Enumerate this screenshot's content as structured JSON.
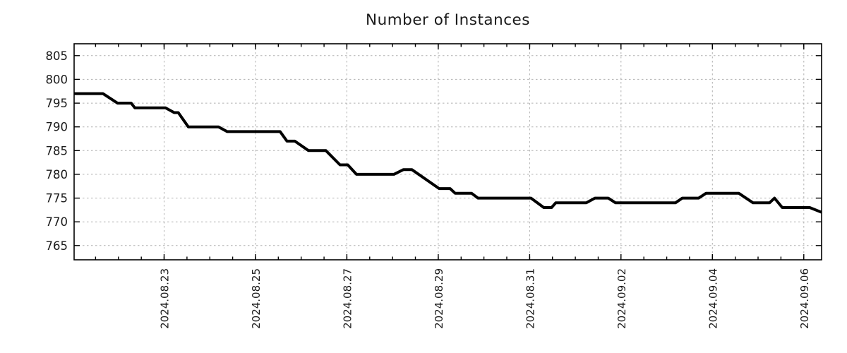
{
  "chart_data": {
    "type": "line",
    "title": "Number of Instances",
    "legend": "none",
    "grid": "dashed gray at major ticks, both axes",
    "series": [
      {
        "name": "instances",
        "color": "#000000",
        "points_day_value": [
          [
            0.03,
            797
          ],
          [
            0.66,
            797
          ],
          [
            0.98,
            795
          ],
          [
            1.28,
            795
          ],
          [
            1.36,
            794
          ],
          [
            2.03,
            794
          ],
          [
            2.22,
            793
          ],
          [
            2.31,
            793
          ],
          [
            2.53,
            790
          ],
          [
            3.19,
            790
          ],
          [
            3.38,
            789
          ],
          [
            4.54,
            789
          ],
          [
            4.69,
            787
          ],
          [
            4.86,
            787
          ],
          [
            5.16,
            785
          ],
          [
            5.54,
            785
          ],
          [
            5.85,
            782
          ],
          [
            6.02,
            782
          ],
          [
            6.21,
            780
          ],
          [
            7.03,
            780
          ],
          [
            7.24,
            781
          ],
          [
            7.42,
            781
          ],
          [
            8.02,
            777
          ],
          [
            8.26,
            777
          ],
          [
            8.37,
            776
          ],
          [
            8.73,
            776
          ],
          [
            8.87,
            775
          ],
          [
            10.03,
            775
          ],
          [
            10.31,
            773
          ],
          [
            10.48,
            773
          ],
          [
            10.57,
            774
          ],
          [
            11.24,
            774
          ],
          [
            11.43,
            775
          ],
          [
            11.72,
            775
          ],
          [
            11.88,
            774
          ],
          [
            13.19,
            774
          ],
          [
            13.34,
            775
          ],
          [
            13.7,
            775
          ],
          [
            13.86,
            776
          ],
          [
            14.58,
            776
          ],
          [
            14.89,
            774
          ],
          [
            15.25,
            774
          ],
          [
            15.36,
            775
          ],
          [
            15.53,
            773
          ],
          [
            16.13,
            773
          ],
          [
            16.39,
            772
          ]
        ]
      }
    ],
    "x_axis": {
      "unit_day0": "days, tick labels every 2 days",
      "range": [
        0.03,
        16.39
      ],
      "major_ticks": [
        {
          "day": 2,
          "label": "2024.08.23"
        },
        {
          "day": 4,
          "label": "2024.08.25"
        },
        {
          "day": 6,
          "label": "2024.08.27"
        },
        {
          "day": 8,
          "label": "2024.08.29"
        },
        {
          "day": 10,
          "label": "2024.08.31"
        },
        {
          "day": 12,
          "label": "2024.09.02"
        },
        {
          "day": 14,
          "label": "2024.09.04"
        },
        {
          "day": 16,
          "label": "2024.09.06"
        }
      ],
      "minor_tick_interval": 0.5
    },
    "y_axis": {
      "range": [
        762,
        807.5
      ],
      "ticks": [
        765,
        770,
        775,
        780,
        785,
        790,
        795,
        800,
        805
      ]
    },
    "colors": {
      "line": "#000000",
      "grid": "#b0b0b0",
      "axis": "#000000",
      "text": "#1a1a1a",
      "background": "#ffffff"
    }
  }
}
